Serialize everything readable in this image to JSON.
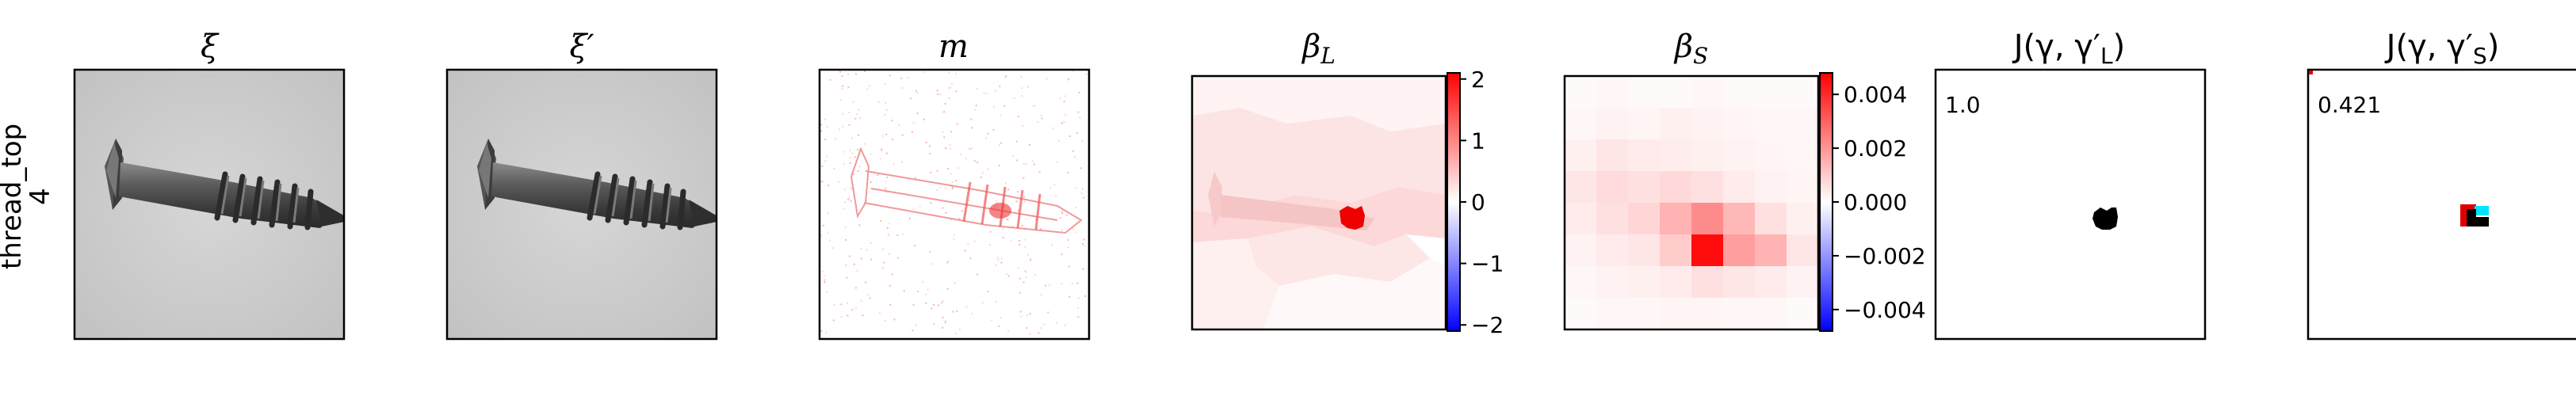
{
  "chart_data": {
    "type": "image-grid",
    "row_label_lines": [
      "thread_top",
      "4"
    ],
    "panels": [
      {
        "id": "xi",
        "title": "ξ",
        "content": "screw-image"
      },
      {
        "id": "xi_prime",
        "title": "ξ′",
        "content": "screw-image"
      },
      {
        "id": "m",
        "title": "m",
        "content": "sparse-red-map"
      },
      {
        "id": "beta_L",
        "title": "βL",
        "title_base": "β",
        "title_sub": "L",
        "content": "superpixel-attribution",
        "colorbar": {
          "ticks": [
            "2",
            "1",
            "0",
            "−1",
            "−2"
          ],
          "tick_values": [
            2,
            1,
            0,
            -1,
            -2
          ],
          "range": [
            -2.1,
            2.1
          ],
          "colormap": "bwr"
        }
      },
      {
        "id": "beta_S",
        "title": "βS",
        "title_base": "β",
        "title_sub": "S",
        "content": "grid-attribution",
        "colorbar": {
          "ticks": [
            "0.004",
            "0.002",
            "0.000",
            "−0.002",
            "−0.004"
          ],
          "tick_values": [
            0.004,
            0.002,
            0,
            -0.002,
            -0.004
          ],
          "range": [
            -0.0048,
            0.0048
          ],
          "colormap": "bwr"
        }
      },
      {
        "id": "J_L",
        "title": "J(γ, γ′L)",
        "title_prefix": "J(γ, γ′",
        "title_sub": "L",
        "title_suffix": ")",
        "value": "1.0",
        "content": "mask-overlap"
      },
      {
        "id": "J_S",
        "title": "J(γ, γ′S)",
        "title_prefix": "J(γ, γ′",
        "title_sub": "S",
        "title_suffix": ")",
        "value": "0.421",
        "content": "mask-overlap-partial"
      }
    ],
    "colors": {
      "positive": "#ff0000",
      "negative": "#0000ff",
      "neutral": "#ffffff",
      "mask": "#000000",
      "overlap_extra": "#00e5ff"
    }
  }
}
